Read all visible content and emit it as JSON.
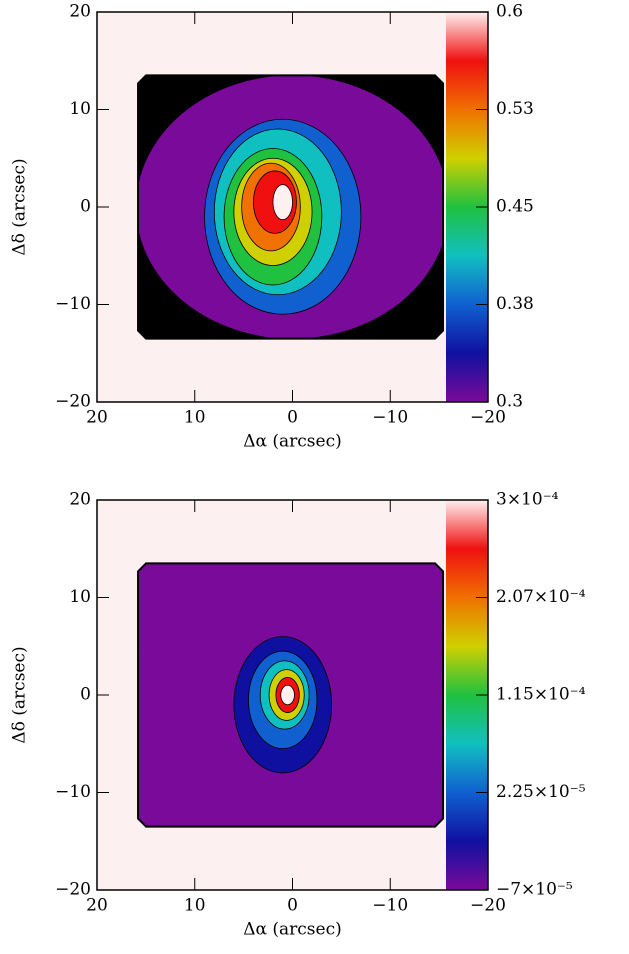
{
  "chart_data": [
    {
      "type": "image",
      "xlabel": "Δα (arcsec)",
      "ylabel": "Δδ (arcsec)",
      "xlim": [
        20,
        -20
      ],
      "ylim": [
        -20,
        20
      ],
      "xticks": [
        20,
        10,
        0,
        {
          "value": -10,
          "label": "−10"
        },
        {
          "value": -20,
          "label": "−20"
        }
      ],
      "yticks": [
        {
          "value": -20,
          "label": "−20"
        },
        {
          "value": -10,
          "label": "−10"
        },
        0,
        10,
        20
      ],
      "clim": [
        0.3,
        0.6
      ],
      "cticks": [
        0.3,
        {
          "value": 0.375,
          "label": "0.38"
        },
        0.45,
        {
          "value": 0.525,
          "label": "0.53"
        },
        0.6
      ],
      "colormap": [
        "#7a0a9a",
        "#1010a0",
        "#1060d0",
        "#10c0c0",
        "#20c040",
        "#d0d000",
        "#f07000",
        "#f01010",
        "#fff0f0"
      ]
    },
    {
      "type": "image",
      "xlabel": "Δα (arcsec)",
      "ylabel": "Δδ (arcsec)",
      "xlim": [
        20,
        -20
      ],
      "ylim": [
        -20,
        20
      ],
      "xticks": [
        20,
        10,
        0,
        {
          "value": -10,
          "label": "−10"
        },
        {
          "value": -20,
          "label": "−20"
        }
      ],
      "yticks": [
        {
          "value": -20,
          "label": "−20"
        },
        {
          "value": -10,
          "label": "−10"
        },
        0,
        10,
        20
      ],
      "clim": [
        -7e-05,
        0.0003
      ],
      "cticks": [
        {
          "value": -7e-05,
          "label": "−7×10⁻⁵"
        },
        {
          "value": 2.25e-05,
          "label": "2.25×10⁻⁵"
        },
        {
          "value": 0.000115,
          "label": "1.15×10⁻⁴"
        },
        {
          "value": 0.0002075,
          "label": "2.07×10⁻⁴"
        },
        {
          "value": 0.0003,
          "label": "3×10⁻⁴"
        }
      ],
      "colormap": [
        "#7a0a9a",
        "#1010a0",
        "#1060d0",
        "#10c0c0",
        "#20c040",
        "#d0d000",
        "#f07000",
        "#f01010",
        "#fff0f0"
      ]
    }
  ]
}
